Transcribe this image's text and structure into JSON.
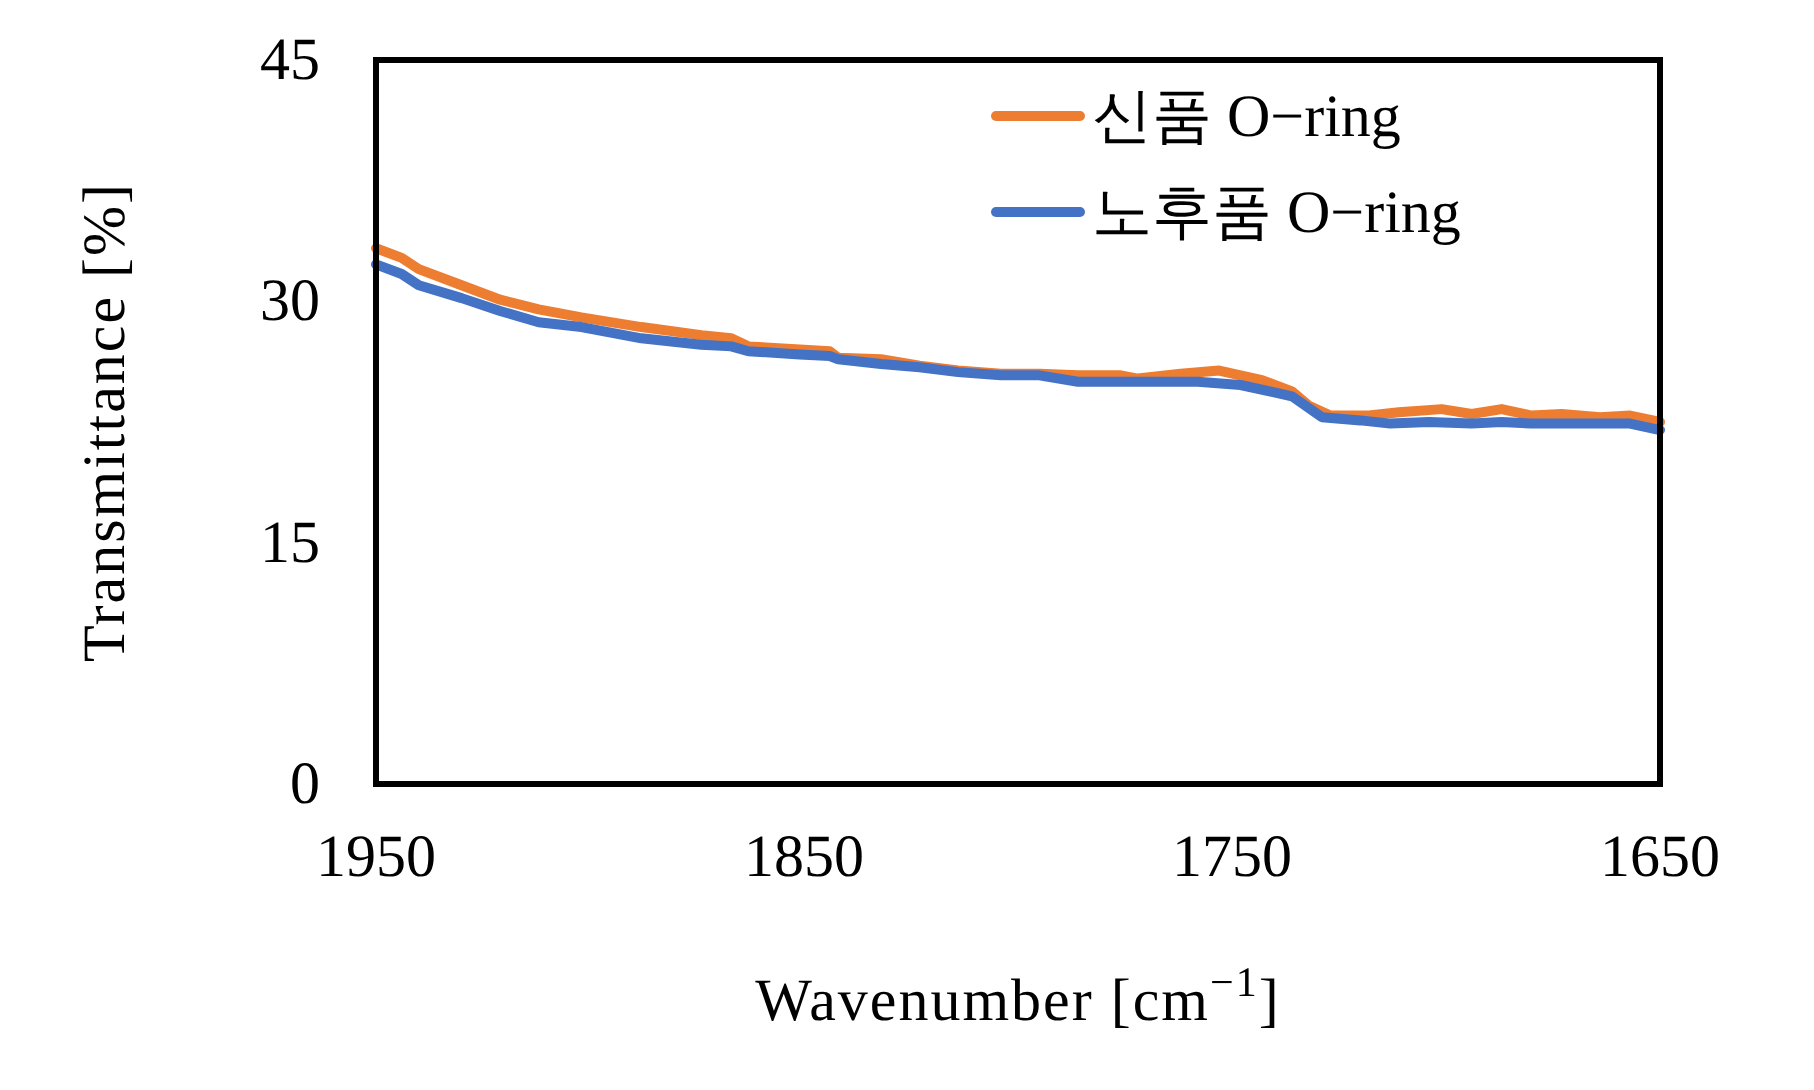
{
  "chart_data": {
    "type": "line",
    "xlabel": "Wavenumber [cm$^{−1}$]",
    "ylabel": "Transmittance [%]",
    "xlim": [
      1950,
      1650
    ],
    "xticks": [
      1950,
      1850,
      1750,
      1650
    ],
    "ylim": [
      0,
      45
    ],
    "yticks": [
      0,
      15,
      30,
      45
    ],
    "grid": false,
    "legend": "top right",
    "marker": "none",
    "line_style": "solid",
    "series": [
      {
        "name": "신품 O−ring",
        "color": "#ed7d31",
        "x": [
          1950,
          1944,
          1940,
          1930,
          1921,
          1912,
          1902,
          1888,
          1874,
          1867,
          1863,
          1851,
          1844,
          1842,
          1832,
          1823,
          1814,
          1804,
          1795,
          1786,
          1776,
          1772,
          1762,
          1753,
          1743,
          1736,
          1732,
          1727,
          1718,
          1711,
          1701,
          1694,
          1687,
          1680,
          1673,
          1664,
          1657,
          1650
        ],
        "values": [
          33.3,
          32.7,
          32.0,
          31.0,
          30.1,
          29.5,
          29.0,
          28.4,
          27.9,
          27.7,
          27.2,
          27.0,
          26.9,
          26.5,
          26.4,
          26.0,
          25.7,
          25.5,
          25.5,
          25.4,
          25.4,
          25.2,
          25.5,
          25.7,
          25.1,
          24.4,
          23.5,
          22.9,
          22.9,
          23.1,
          23.3,
          23.0,
          23.3,
          22.9,
          23.0,
          22.8,
          22.9,
          22.5
        ]
      },
      {
        "name": "노후품 O−ring",
        "color": "#4472c4",
        "x": [
          1950,
          1944,
          1940,
          1930,
          1921,
          1912,
          1902,
          1888,
          1874,
          1867,
          1863,
          1851,
          1844,
          1842,
          1832,
          1823,
          1814,
          1804,
          1795,
          1786,
          1776,
          1767,
          1758,
          1748,
          1736,
          1729,
          1720,
          1713,
          1704,
          1694,
          1687,
          1680,
          1669,
          1657,
          1650
        ],
        "values": [
          32.3,
          31.7,
          31.0,
          30.2,
          29.4,
          28.7,
          28.4,
          27.7,
          27.3,
          27.2,
          26.9,
          26.7,
          26.6,
          26.4,
          26.1,
          25.9,
          25.6,
          25.4,
          25.4,
          25.0,
          25.0,
          25.0,
          25.0,
          24.8,
          24.1,
          22.8,
          22.6,
          22.4,
          22.5,
          22.4,
          22.5,
          22.4,
          22.4,
          22.4,
          22.0
        ]
      }
    ]
  }
}
